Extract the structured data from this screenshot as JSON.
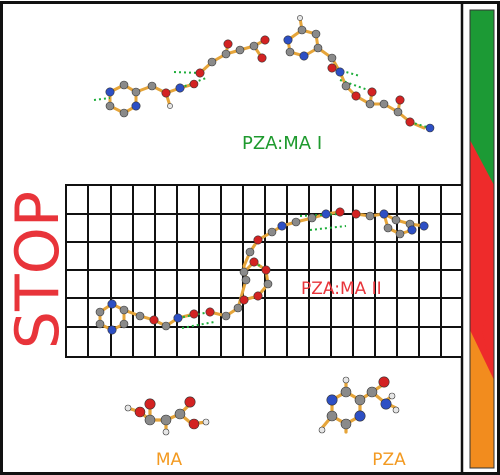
{
  "labels": {
    "form1": "PZA:MA I",
    "form2": "PZA:MA II",
    "stop": "STOP",
    "ma": "MA",
    "pza": "PZA"
  },
  "colors": {
    "form1_label": "#1e9a2e",
    "form2_label": "#e8343a",
    "stop_text": "#e8343a",
    "component_label": "#f39a21",
    "grid": "#111111",
    "bar_green": "#1c9a35",
    "bar_red": "#ee2b2b",
    "bar_orange": "#f28c1e",
    "carbon": "#8a8a8a",
    "oxygen": "#d32222",
    "nitrogen": "#2d4fc4",
    "hydrogen": "#e6e6e6",
    "bond": "#e6a53a",
    "hbond": "#1fae3c"
  },
  "icons": {
    "molecule": "ball-and-stick-molecule-icon",
    "stability_bar": "stability-gradient-bar"
  }
}
